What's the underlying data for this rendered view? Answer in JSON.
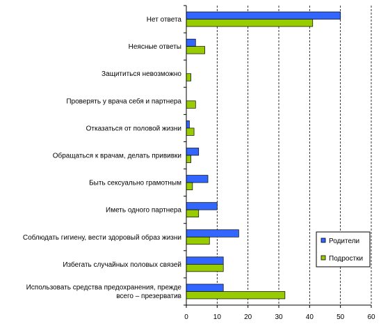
{
  "chart_data": {
    "type": "bar",
    "orientation": "horizontal",
    "categories": [
      "Нет ответа",
      "Неясные ответы",
      "Защититься невозможно",
      "Проверять у врача себя и партнера",
      "Отказаться от половой жизни",
      "Обращаться к врачам, делать прививки",
      "Быть сексуально грамотным",
      "Иметь одного партнера",
      "Соблюдать гигиену, вести здоровый образ жизни",
      "Избегать случайных половых связей",
      [
        "Использовать средства предохранения, прежде",
        "всего – презерватив"
      ]
    ],
    "series": [
      {
        "name": "Родители",
        "color": "#3366ff",
        "values": [
          50,
          3,
          0,
          0,
          1,
          4,
          7,
          10,
          17,
          12,
          12
        ]
      },
      {
        "name": "Подростки",
        "color": "#99cc00",
        "values": [
          41,
          6,
          1.5,
          3,
          2.5,
          1.5,
          2,
          4,
          7.5,
          12,
          32
        ]
      }
    ],
    "xlim": [
      0,
      60
    ],
    "xticks": [
      0,
      10,
      20,
      30,
      40,
      50,
      60
    ],
    "grid": "vertical-dashed",
    "legend_position": "right"
  }
}
